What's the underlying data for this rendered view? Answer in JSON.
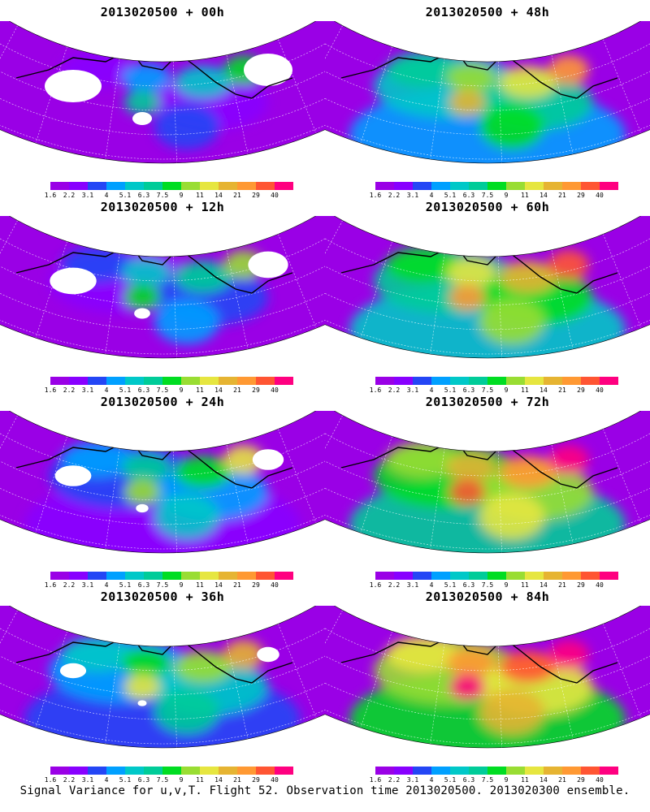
{
  "figure": {
    "caption": "Signal Variance for u,v,T. Flight 52. Observation time 2013020500. 2013020300 ensemble."
  },
  "colorbar": {
    "labels": [
      "1.6",
      "2.2",
      "3.1",
      "4",
      "5.1",
      "6.3",
      "7.5",
      "9",
      "11",
      "14",
      "21",
      "29",
      "40"
    ],
    "colors": [
      "#9a00e6",
      "#8800ff",
      "#2446f5",
      "#00a0ff",
      "#00c8c8",
      "#00cc99",
      "#00dd22",
      "#99dd33",
      "#e6e640",
      "#e6b432",
      "#ff9933",
      "#ff5533",
      "#ff0080"
    ]
  },
  "panels": [
    {
      "title": "2013020500 + 00h",
      "level": 0
    },
    {
      "title": "2013020500 + 48h",
      "level": 4
    },
    {
      "title": "2013020500 + 12h",
      "level": 1
    },
    {
      "title": "2013020500 + 60h",
      "level": 5
    },
    {
      "title": "2013020500 + 24h",
      "level": 2
    },
    {
      "title": "2013020500 + 72h",
      "level": 6
    },
    {
      "title": "2013020500 + 36h",
      "level": 3
    },
    {
      "title": "2013020500 + 84h",
      "level": 7
    }
  ]
}
